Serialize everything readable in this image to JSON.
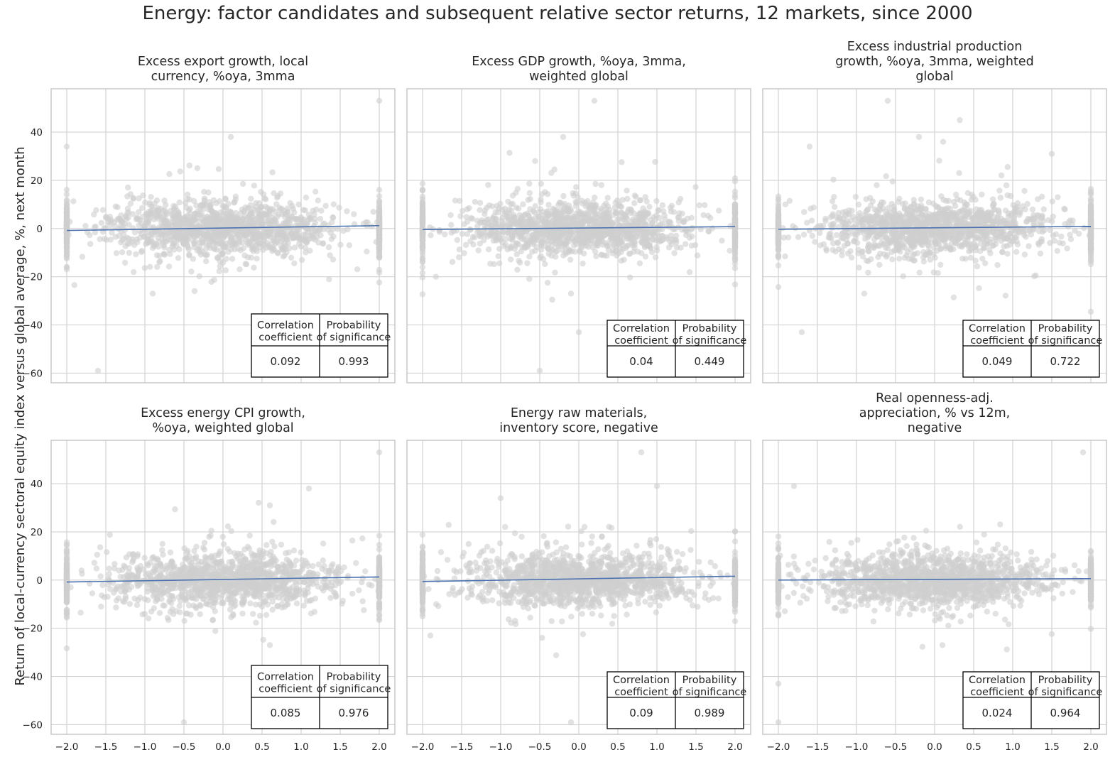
{
  "figure": {
    "title": "Energy: factor candidates and subsequent relative sector returns, 12 markets, since 2000",
    "ylabel": "Return of local-currency sectoral equity index versus global average, %, next month",
    "colors": {
      "points": "#cfcfcf",
      "fit_line": "#4c72b0",
      "grid": "#d2d2d2",
      "spine": "#c8c8c8",
      "text": "#262626"
    }
  },
  "chart_data": [
    {
      "type": "scatter",
      "title": "Excess export growth, local\ncurrency, %oya, 3mma",
      "x_ticks": [
        "−2.0",
        "−1.5",
        "−1.0",
        "−0.5",
        "0.0",
        "0.5",
        "1.0",
        "1.5",
        "2.0"
      ],
      "y_ticks": [
        "−60",
        "−40",
        "−20",
        "0",
        "20",
        "40"
      ],
      "xlim": [
        -2.2,
        2.2
      ],
      "ylim": [
        -64,
        58
      ],
      "tick_labels_x_visible": false,
      "tick_labels_y_visible": true,
      "fit_line": {
        "x": [
          -2.0,
          2.0
        ],
        "y": [
          -0.8,
          1.2
        ]
      },
      "stats_table": {
        "headers": [
          "Correlation\ncoefficient",
          "Probability\nof significance"
        ],
        "values": [
          "0.092",
          "0.993"
        ]
      },
      "scatter_points": 1600,
      "notable_points": [
        [
          2.0,
          53
        ],
        [
          -2.0,
          34
        ],
        [
          0.1,
          38
        ],
        [
          -1.6,
          -59
        ],
        [
          0.7,
          -44
        ],
        [
          -0.9,
          -27
        ]
      ]
    },
    {
      "type": "scatter",
      "title": "Excess GDP growth, %oya, 3mma,\nweighted global",
      "x_ticks": [
        "−2.0",
        "−1.5",
        "−1.0",
        "−0.5",
        "0.0",
        "0.5",
        "1.0",
        "1.5",
        "2.0"
      ],
      "y_ticks": [
        "−60",
        "−40",
        "−20",
        "0",
        "20",
        "40"
      ],
      "xlim": [
        -2.2,
        2.2
      ],
      "ylim": [
        -64,
        58
      ],
      "tick_labels_x_visible": false,
      "tick_labels_y_visible": false,
      "fit_line": {
        "x": [
          -2.0,
          2.0
        ],
        "y": [
          -0.4,
          0.8
        ]
      },
      "stats_table": {
        "headers": [
          "Correlation\ncoefficient",
          "Probability\nof significance"
        ],
        "values": [
          "0.04",
          "0.449"
        ]
      },
      "scatter_points": 1600,
      "notable_points": [
        [
          0.2,
          53
        ],
        [
          -0.2,
          38
        ],
        [
          -0.5,
          -59
        ],
        [
          0.0,
          -43
        ],
        [
          -0.1,
          -27
        ]
      ]
    },
    {
      "type": "scatter",
      "title": "Excess industrial production\ngrowth, %oya, 3mma, weighted\nglobal",
      "x_ticks": [
        "−2.0",
        "−1.5",
        "−1.0",
        "−0.5",
        "0.0",
        "0.5",
        "1.0",
        "1.5",
        "2.0"
      ],
      "y_ticks": [
        "−60",
        "−40",
        "−20",
        "0",
        "20",
        "40"
      ],
      "xlim": [
        -2.2,
        2.2
      ],
      "ylim": [
        -64,
        58
      ],
      "tick_labels_x_visible": false,
      "tick_labels_y_visible": false,
      "fit_line": {
        "x": [
          -2.0,
          2.0
        ],
        "y": [
          -0.3,
          0.9
        ]
      },
      "stats_table": {
        "headers": [
          "Correlation\ncoefficient",
          "Probability\nof significance"
        ],
        "values": [
          "0.049",
          "0.722"
        ]
      },
      "scatter_points": 1600,
      "notable_points": [
        [
          -0.6,
          53
        ],
        [
          -0.2,
          38
        ],
        [
          -1.6,
          34
        ],
        [
          1.5,
          31
        ],
        [
          -1.7,
          -43
        ],
        [
          -0.9,
          -27
        ]
      ]
    },
    {
      "type": "scatter",
      "title": "Excess energy CPI growth,\n%oya, weighted global",
      "x_ticks": [
        "−2.0",
        "−1.5",
        "−1.0",
        "−0.5",
        "0.0",
        "0.5",
        "1.0",
        "1.5",
        "2.0"
      ],
      "y_ticks": [
        "−60",
        "−40",
        "−20",
        "0",
        "20",
        "40"
      ],
      "xlim": [
        -2.2,
        2.2
      ],
      "ylim": [
        -64,
        58
      ],
      "tick_labels_x_visible": true,
      "tick_labels_y_visible": true,
      "fit_line": {
        "x": [
          -2.0,
          2.0
        ],
        "y": [
          -0.8,
          1.3
        ]
      },
      "stats_table": {
        "headers": [
          "Correlation\ncoefficient",
          "Probability\nof significance"
        ],
        "values": [
          "0.085",
          "0.976"
        ]
      },
      "scatter_points": 1600,
      "notable_points": [
        [
          2.0,
          53
        ],
        [
          1.1,
          38
        ],
        [
          0.6,
          31
        ],
        [
          -0.5,
          -59
        ],
        [
          0.6,
          -27
        ]
      ]
    },
    {
      "type": "scatter",
      "title": "Energy raw materials,\ninventory score, negative",
      "x_ticks": [
        "−2.0",
        "−1.5",
        "−1.0",
        "−0.5",
        "0.0",
        "0.5",
        "1.0",
        "1.5",
        "2.0"
      ],
      "y_ticks": [
        "−60",
        "−40",
        "−20",
        "0",
        "20",
        "40"
      ],
      "xlim": [
        -2.2,
        2.2
      ],
      "ylim": [
        -64,
        58
      ],
      "tick_labels_x_visible": true,
      "tick_labels_y_visible": false,
      "fit_line": {
        "x": [
          -2.0,
          2.0
        ],
        "y": [
          -0.6,
          1.6
        ]
      },
      "stats_table": {
        "headers": [
          "Correlation\ncoefficient",
          "Probability\nof significance"
        ],
        "values": [
          "0.09",
          "0.989"
        ]
      },
      "scatter_points": 1600,
      "notable_points": [
        [
          0.8,
          53
        ],
        [
          1.0,
          39
        ],
        [
          -1.0,
          34
        ],
        [
          -0.1,
          -59
        ],
        [
          -1.9,
          -23
        ]
      ]
    },
    {
      "type": "scatter",
      "title": "Real openness-adj.\nappreciation, % vs 12m,\nnegative",
      "x_ticks": [
        "−2.0",
        "−1.5",
        "−1.0",
        "−0.5",
        "0.0",
        "0.5",
        "1.0",
        "1.5",
        "2.0"
      ],
      "y_ticks": [
        "−60",
        "−40",
        "−20",
        "0",
        "20",
        "40"
      ],
      "xlim": [
        -2.2,
        2.2
      ],
      "ylim": [
        -64,
        58
      ],
      "tick_labels_x_visible": true,
      "tick_labels_y_visible": false,
      "fit_line": {
        "x": [
          -2.0,
          2.0
        ],
        "y": [
          0.0,
          0.6
        ]
      },
      "stats_table": {
        "headers": [
          "Correlation\ncoefficient",
          "Probability\nof significance"
        ],
        "values": [
          "0.024",
          "0.964"
        ]
      },
      "scatter_points": 1600,
      "notable_points": [
        [
          1.9,
          53
        ],
        [
          -1.8,
          39
        ],
        [
          -2.0,
          -43
        ],
        [
          -2.0,
          -59
        ],
        [
          0.1,
          -27
        ]
      ]
    }
  ]
}
